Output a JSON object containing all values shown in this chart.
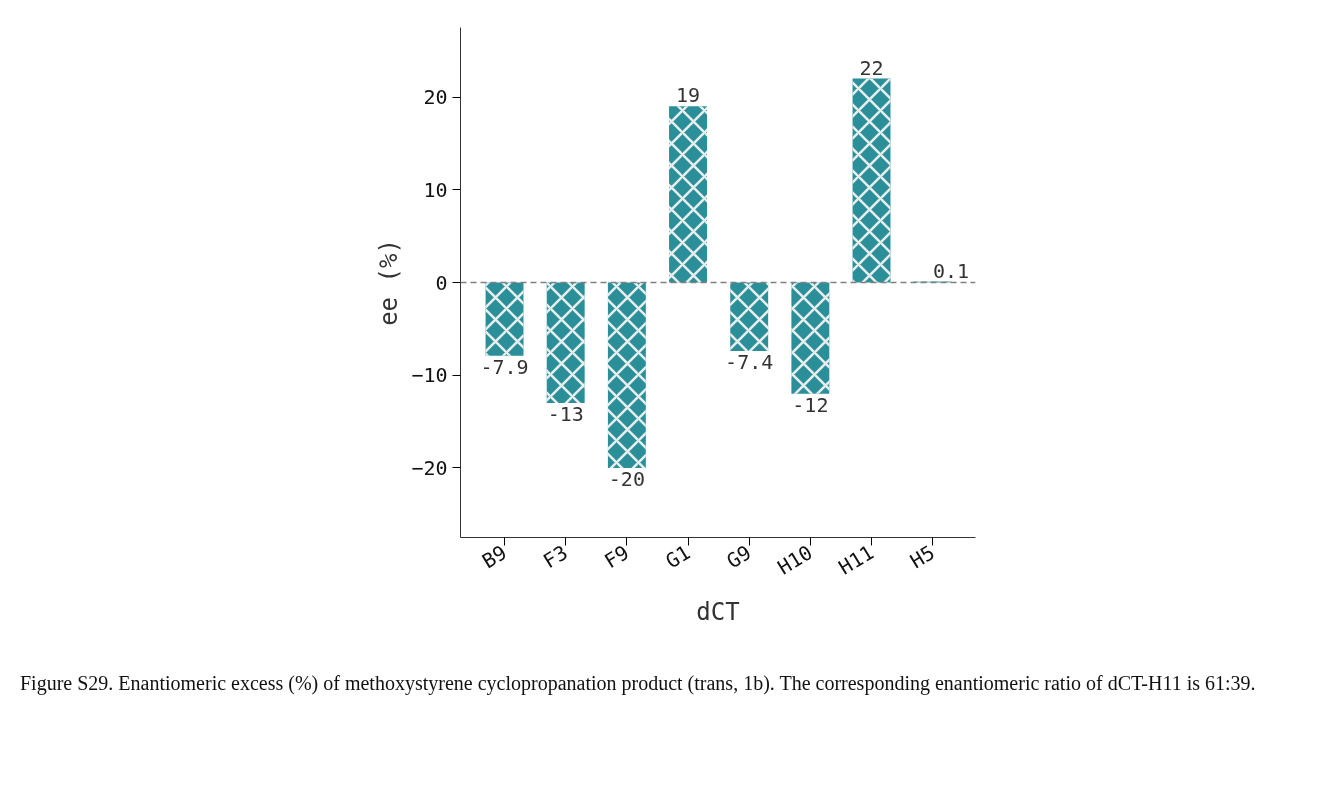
{
  "chart_data": {
    "type": "bar",
    "xlabel": "dCT",
    "ylabel": "ee (%)",
    "categories": [
      "B9",
      "F3",
      "F9",
      "G1",
      "G9",
      "H10",
      "H11",
      "H5"
    ],
    "values": [
      -7.9,
      -13,
      -20,
      19,
      -7.4,
      -12,
      22,
      0.1
    ],
    "color": "#2a8f99",
    "data_labels": true,
    "ylim": [
      -27.5,
      27.5
    ],
    "yticks": [
      -20,
      -10,
      0,
      10,
      20
    ],
    "grid": false,
    "ref_lines": [
      {
        "axis": "y",
        "value": 0,
        "color": "#808080",
        "line_style": "dashed"
      }
    ],
    "annotations": [
      "Figure S29. Enantiomeric excess (%) of methoxystyrene cyclopropanation product (trans, 1b). The corresponding enantiomeric ratio of dCT-H11 is 61:39."
    ]
  }
}
